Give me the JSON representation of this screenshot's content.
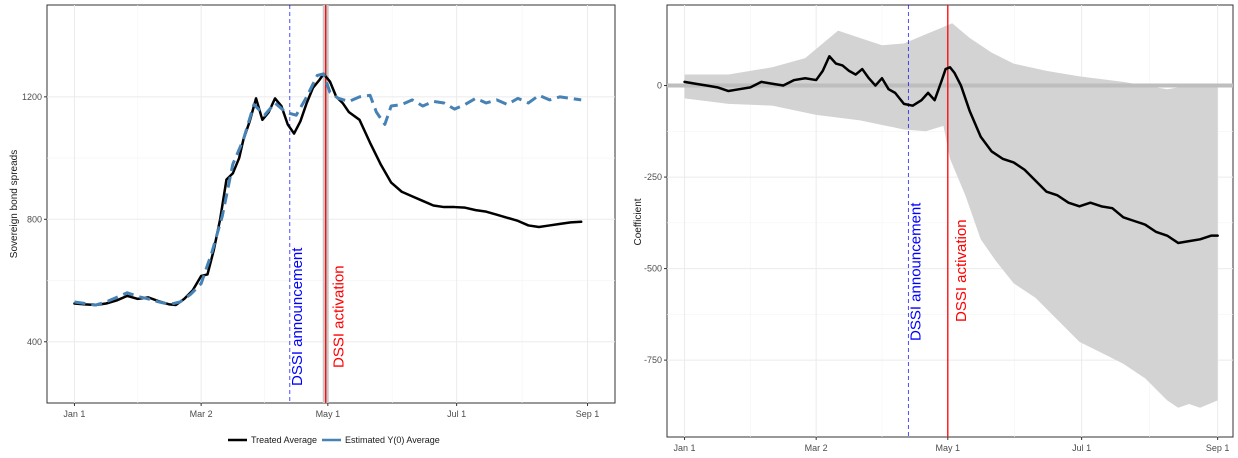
{
  "colors": {
    "treated": "#000000",
    "estimated": "#4682b4",
    "announcement": "#0000ff",
    "activation": "#ff0000",
    "ci_band": "#d3d3d3",
    "grid": "#ebebeb"
  },
  "chart_data": [
    {
      "type": "line",
      "xlabel": "",
      "ylabel": "Sovereign bond spreads",
      "x_ticks": [
        "Jan 1",
        "Mar 2",
        "May 1",
        "Jul 1",
        "Sep 1"
      ],
      "x_tick_days": [
        0,
        60,
        120,
        181,
        243
      ],
      "xlim": [
        -13,
        256
      ],
      "ylim": [
        200,
        1500
      ],
      "y_ticks": [
        400,
        800,
        1200
      ],
      "grid": true,
      "legend_position": "bottom",
      "announcement": {
        "label": "DSSI announcement",
        "day": 102
      },
      "activation": {
        "label": "DSSI activation",
        "day": 119
      },
      "series": [
        {
          "name": "Treated Average",
          "style": "solid",
          "points": [
            [
              0,
              525
            ],
            [
              5,
              522
            ],
            [
              10,
              520
            ],
            [
              15,
              525
            ],
            [
              20,
              535
            ],
            [
              25,
              550
            ],
            [
              30,
              540
            ],
            [
              35,
              545
            ],
            [
              40,
              532
            ],
            [
              45,
              522
            ],
            [
              48,
              520
            ],
            [
              52,
              540
            ],
            [
              56,
              568
            ],
            [
              60,
              615
            ],
            [
              63,
              620
            ],
            [
              66,
              700
            ],
            [
              69,
              800
            ],
            [
              72,
              930
            ],
            [
              75,
              950
            ],
            [
              78,
              1000
            ],
            [
              80,
              1060
            ],
            [
              83,
              1120
            ],
            [
              86,
              1195
            ],
            [
              89,
              1125
            ],
            [
              92,
              1150
            ],
            [
              95,
              1195
            ],
            [
              98,
              1170
            ],
            [
              101,
              1110
            ],
            [
              104,
              1080
            ],
            [
              107,
              1120
            ],
            [
              110,
              1180
            ],
            [
              113,
              1230
            ],
            [
              116,
              1255
            ],
            [
              118,
              1275
            ],
            [
              121,
              1250
            ],
            [
              124,
              1200
            ],
            [
              127,
              1180
            ],
            [
              130,
              1150
            ],
            [
              135,
              1125
            ],
            [
              140,
              1050
            ],
            [
              145,
              980
            ],
            [
              150,
              920
            ],
            [
              155,
              890
            ],
            [
              160,
              875
            ],
            [
              165,
              860
            ],
            [
              170,
              845
            ],
            [
              175,
              840
            ],
            [
              180,
              840
            ],
            [
              185,
              838
            ],
            [
              190,
              830
            ],
            [
              195,
              825
            ],
            [
              200,
              815
            ],
            [
              205,
              805
            ],
            [
              210,
              795
            ],
            [
              215,
              780
            ],
            [
              220,
              775
            ],
            [
              225,
              780
            ],
            [
              230,
              785
            ],
            [
              235,
              790
            ],
            [
              240,
              792
            ]
          ]
        },
        {
          "name": "Estimated Y(0) Average",
          "style": "dashed",
          "points": [
            [
              0,
              530
            ],
            [
              5,
              525
            ],
            [
              10,
              520
            ],
            [
              15,
              530
            ],
            [
              20,
              545
            ],
            [
              25,
              560
            ],
            [
              30,
              548
            ],
            [
              35,
              540
            ],
            [
              40,
              530
            ],
            [
              45,
              522
            ],
            [
              50,
              530
            ],
            [
              55,
              555
            ],
            [
              60,
              590
            ],
            [
              65,
              690
            ],
            [
              70,
              810
            ],
            [
              75,
              980
            ],
            [
              80,
              1060
            ],
            [
              85,
              1175
            ],
            [
              90,
              1140
            ],
            [
              95,
              1180
            ],
            [
              100,
              1150
            ],
            [
              105,
              1140
            ],
            [
              110,
              1200
            ],
            [
              115,
              1270
            ],
            [
              118,
              1275
            ],
            [
              121,
              1215
            ],
            [
              125,
              1195
            ],
            [
              130,
              1185
            ],
            [
              135,
              1200
            ],
            [
              140,
              1205
            ],
            [
              143,
              1150
            ],
            [
              147,
              1110
            ],
            [
              150,
              1170
            ],
            [
              155,
              1175
            ],
            [
              160,
              1190
            ],
            [
              165,
              1170
            ],
            [
              170,
              1185
            ],
            [
              175,
              1180
            ],
            [
              180,
              1160
            ],
            [
              185,
              1175
            ],
            [
              190,
              1195
            ],
            [
              195,
              1180
            ],
            [
              200,
              1190
            ],
            [
              205,
              1175
            ],
            [
              210,
              1195
            ],
            [
              215,
              1180
            ],
            [
              220,
              1205
            ],
            [
              225,
              1190
            ],
            [
              230,
              1200
            ],
            [
              235,
              1195
            ],
            [
              240,
              1190
            ]
          ]
        }
      ]
    },
    {
      "type": "line",
      "xlabel": "",
      "ylabel": "Coefficient",
      "x_ticks": [
        "Jan 1",
        "Mar 2",
        "May 1",
        "Jul 1",
        "Sep 1"
      ],
      "x_tick_days": [
        0,
        60,
        120,
        181,
        243
      ],
      "xlim": [
        -8,
        250
      ],
      "ylim": [
        -960,
        220
      ],
      "y_ticks": [
        0,
        -250,
        -500,
        -750
      ],
      "grid": true,
      "zero_line": 0,
      "announcement": {
        "label": "DSSI announcement",
        "day": 102
      },
      "activation": {
        "label": "DSSI activation",
        "day": 120
      },
      "series": [
        {
          "name": "",
          "style": "solid",
          "points": [
            [
              0,
              10
            ],
            [
              5,
              5
            ],
            [
              10,
              0
            ],
            [
              15,
              -5
            ],
            [
              20,
              -15
            ],
            [
              25,
              -10
            ],
            [
              30,
              -5
            ],
            [
              35,
              10
            ],
            [
              40,
              5
            ],
            [
              45,
              0
            ],
            [
              50,
              15
            ],
            [
              55,
              20
            ],
            [
              60,
              15
            ],
            [
              63,
              40
            ],
            [
              66,
              80
            ],
            [
              69,
              60
            ],
            [
              72,
              55
            ],
            [
              75,
              40
            ],
            [
              78,
              30
            ],
            [
              81,
              45
            ],
            [
              84,
              20
            ],
            [
              87,
              0
            ],
            [
              90,
              20
            ],
            [
              93,
              -10
            ],
            [
              96,
              -20
            ],
            [
              100,
              -50
            ],
            [
              104,
              -55
            ],
            [
              108,
              -40
            ],
            [
              111,
              -20
            ],
            [
              114,
              -40
            ],
            [
              117,
              10
            ],
            [
              119,
              45
            ],
            [
              121,
              50
            ],
            [
              123,
              35
            ],
            [
              126,
              0
            ],
            [
              130,
              -70
            ],
            [
              135,
              -140
            ],
            [
              140,
              -180
            ],
            [
              145,
              -200
            ],
            [
              150,
              -210
            ],
            [
              155,
              -230
            ],
            [
              160,
              -260
            ],
            [
              165,
              -290
            ],
            [
              170,
              -300
            ],
            [
              175,
              -320
            ],
            [
              180,
              -330
            ],
            [
              185,
              -320
            ],
            [
              190,
              -330
            ],
            [
              195,
              -335
            ],
            [
              200,
              -360
            ],
            [
              205,
              -370
            ],
            [
              210,
              -380
            ],
            [
              215,
              -400
            ],
            [
              220,
              -410
            ],
            [
              225,
              -430
            ],
            [
              230,
              -425
            ],
            [
              235,
              -420
            ],
            [
              240,
              -410
            ],
            [
              243,
              -410
            ]
          ]
        }
      ],
      "ci_band": {
        "upper": [
          [
            0,
            30
          ],
          [
            20,
            30
          ],
          [
            40,
            50
          ],
          [
            55,
            75
          ],
          [
            65,
            125
          ],
          [
            70,
            150
          ],
          [
            80,
            130
          ],
          [
            90,
            110
          ],
          [
            100,
            115
          ],
          [
            110,
            140
          ],
          [
            118,
            160
          ],
          [
            122,
            170
          ],
          [
            130,
            130
          ],
          [
            140,
            90
          ],
          [
            150,
            60
          ],
          [
            165,
            40
          ],
          [
            180,
            25
          ],
          [
            200,
            10
          ],
          [
            220,
            -10
          ],
          [
            235,
            5
          ],
          [
            243,
            0
          ]
        ],
        "lower": [
          [
            0,
            -35
          ],
          [
            20,
            -50
          ],
          [
            40,
            -55
          ],
          [
            60,
            -80
          ],
          [
            80,
            -95
          ],
          [
            100,
            -120
          ],
          [
            110,
            -125
          ],
          [
            118,
            -110
          ],
          [
            121,
            -200
          ],
          [
            128,
            -300
          ],
          [
            135,
            -420
          ],
          [
            142,
            -480
          ],
          [
            150,
            -540
          ],
          [
            160,
            -580
          ],
          [
            170,
            -640
          ],
          [
            180,
            -700
          ],
          [
            190,
            -730
          ],
          [
            200,
            -760
          ],
          [
            210,
            -800
          ],
          [
            220,
            -860
          ],
          [
            225,
            -880
          ],
          [
            230,
            -870
          ],
          [
            235,
            -880
          ],
          [
            243,
            -860
          ]
        ]
      }
    }
  ]
}
